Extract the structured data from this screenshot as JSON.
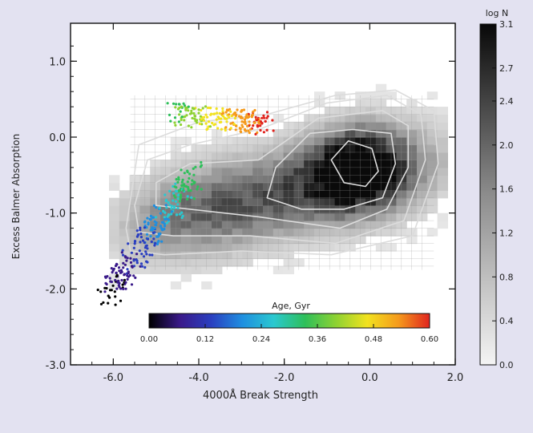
{
  "chart_data": {
    "type": "heatmap",
    "xlabel": "4000Å Break Strength",
    "ylabel": "Excess Balmer Absorption",
    "xlim": [
      -7.0,
      2.0
    ],
    "ylim": [
      -3.0,
      1.5
    ],
    "x_ticks": [
      "-6.0",
      "-4.0",
      "-2.0",
      "0.0",
      "2.0"
    ],
    "x_tick_values": [
      -6,
      -4,
      -2,
      0,
      2
    ],
    "y_ticks": [
      "1.0",
      "0.0",
      "-1.0",
      "-2.0",
      "-3.0"
    ],
    "y_tick_values": [
      1,
      0,
      -1,
      -2,
      -3
    ],
    "density_colorbar": {
      "title": "log N",
      "ticks": [
        "3.1",
        "2.7",
        "2.4",
        "2.0",
        "1.6",
        "1.2",
        "0.8",
        "0.4",
        "0.0"
      ],
      "tick_values": [
        3.1,
        2.7,
        2.4,
        2.0,
        1.6,
        1.2,
        0.8,
        0.4,
        0.0
      ],
      "range": [
        0.0,
        3.1
      ]
    },
    "age_colorbar": {
      "title": "Age, Gyr",
      "ticks": [
        "0.00",
        "0.12",
        "0.24",
        "0.36",
        "0.48",
        "0.60"
      ],
      "tick_values": [
        0.0,
        0.12,
        0.24,
        0.36,
        0.48,
        0.6
      ],
      "range": [
        0.0,
        0.6
      ],
      "colors": [
        "#000000",
        "#3a1a8a",
        "#2a3fc0",
        "#1f8fe0",
        "#2ac8d0",
        "#2ebf5a",
        "#8ed232",
        "#f2e21e",
        "#f59a1c",
        "#e0241e"
      ]
    },
    "density_peak": {
      "x": -0.3,
      "y": -0.4
    },
    "contours": [
      {
        "level": 1,
        "points": [
          [
            -0.9,
            -0.3
          ],
          [
            -0.5,
            -0.05
          ],
          [
            0.05,
            -0.15
          ],
          [
            0.2,
            -0.45
          ],
          [
            -0.1,
            -0.65
          ],
          [
            -0.6,
            -0.6
          ]
        ]
      },
      {
        "level": 2,
        "points": [
          [
            -2.2,
            -0.4
          ],
          [
            -1.4,
            0.05
          ],
          [
            -0.4,
            0.1
          ],
          [
            0.5,
            0.05
          ],
          [
            0.6,
            -0.35
          ],
          [
            0.3,
            -0.8
          ],
          [
            -0.6,
            -0.95
          ],
          [
            -1.6,
            -0.95
          ],
          [
            -2.4,
            -0.8
          ]
        ]
      },
      {
        "level": 3,
        "points": [
          [
            -5.0,
            -0.6
          ],
          [
            -4.2,
            -0.35
          ],
          [
            -2.6,
            -0.3
          ],
          [
            -1.2,
            0.25
          ],
          [
            0.3,
            0.35
          ],
          [
            0.9,
            0.15
          ],
          [
            0.9,
            -0.4
          ],
          [
            0.4,
            -0.95
          ],
          [
            -0.7,
            -1.2
          ],
          [
            -2.6,
            -1.05
          ],
          [
            -4.2,
            -0.95
          ],
          [
            -5.0,
            -0.9
          ]
        ]
      },
      {
        "level": 4,
        "points": [
          [
            -5.5,
            -0.9
          ],
          [
            -5.2,
            -0.3
          ],
          [
            -4.2,
            -0.1
          ],
          [
            -2.6,
            0.1
          ],
          [
            -1.0,
            0.45
          ],
          [
            0.4,
            0.55
          ],
          [
            1.2,
            0.3
          ],
          [
            1.3,
            -0.3
          ],
          [
            0.8,
            -1.1
          ],
          [
            -0.8,
            -1.4
          ],
          [
            -2.8,
            -1.3
          ],
          [
            -4.6,
            -1.3
          ],
          [
            -5.4,
            -1.25
          ]
        ]
      },
      {
        "level": 5,
        "points": [
          [
            -5.7,
            -1.2
          ],
          [
            -5.4,
            -0.1
          ],
          [
            -4.0,
            0.2
          ],
          [
            -2.4,
            0.3
          ],
          [
            -0.8,
            0.55
          ],
          [
            0.6,
            0.62
          ],
          [
            1.5,
            0.35
          ],
          [
            1.6,
            -0.35
          ],
          [
            1.0,
            -1.3
          ],
          [
            -0.9,
            -1.55
          ],
          [
            -3.0,
            -1.5
          ],
          [
            -4.8,
            -1.55
          ],
          [
            -5.6,
            -1.5
          ]
        ]
      }
    ]
  }
}
